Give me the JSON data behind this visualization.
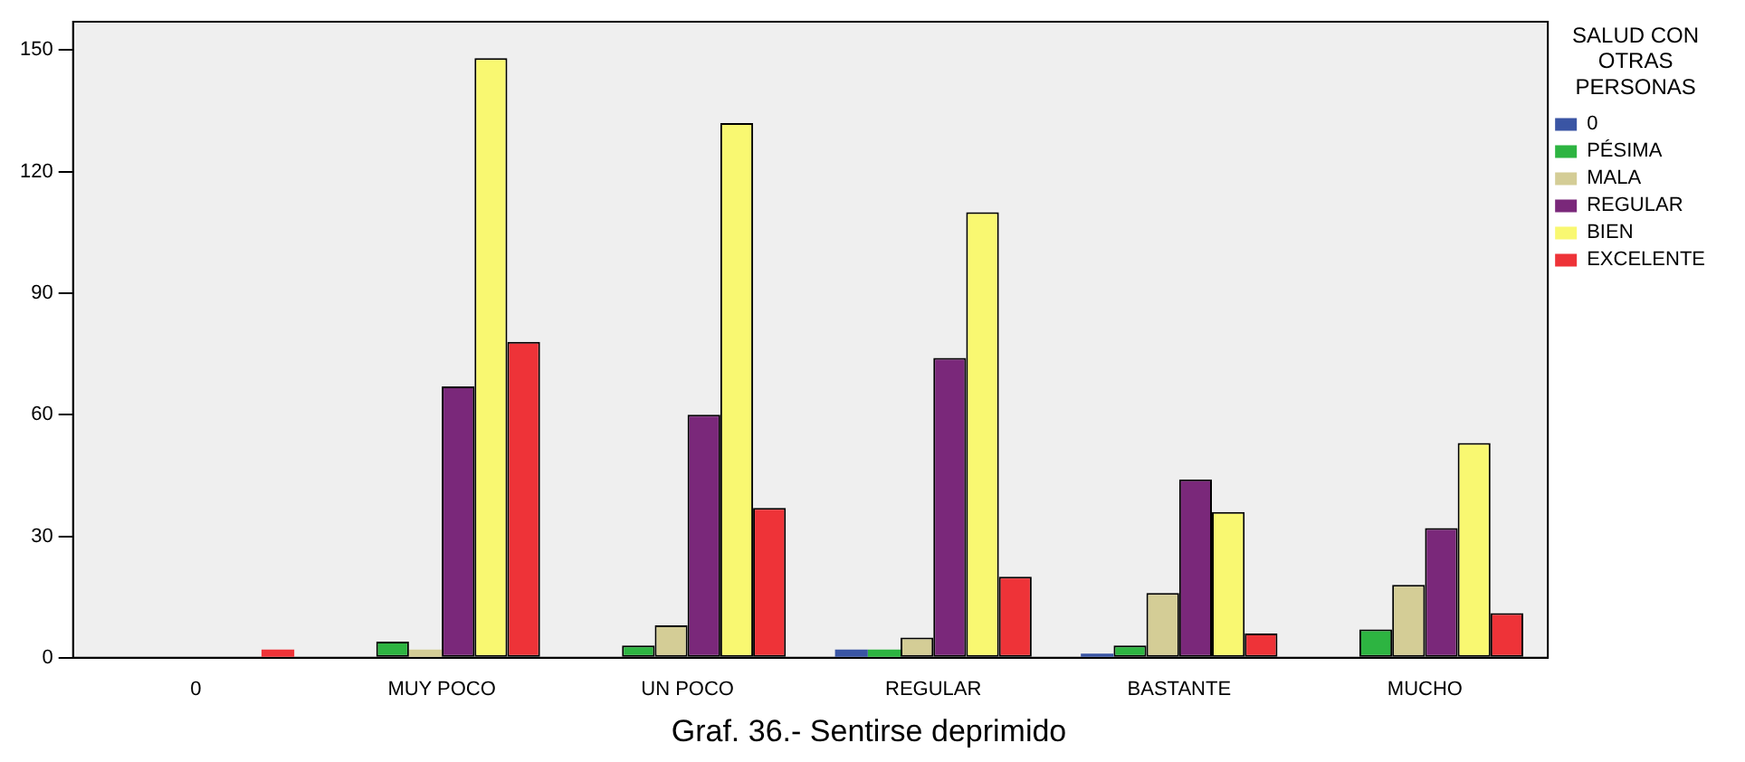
{
  "chart_data": {
    "type": "bar",
    "title": "Graf. 36.- Sentirse deprimido",
    "legend_title": "SALUD CON OTRAS PERSONAS",
    "categories": [
      "0",
      "MUY POCO",
      "UN POCO",
      "REGULAR",
      "BASTANTE",
      "MUCHO"
    ],
    "series": [
      {
        "name": "0",
        "color": "#3a55a4",
        "values": [
          0,
          0,
          0,
          2,
          1,
          0
        ]
      },
      {
        "name": "PÉSIMA",
        "color": "#2db441",
        "values": [
          0,
          4,
          3,
          2,
          3,
          7
        ]
      },
      {
        "name": "MALA",
        "color": "#d4cd96",
        "values": [
          0,
          2,
          8,
          5,
          16,
          18
        ]
      },
      {
        "name": "REGULAR",
        "color": "#7a287a",
        "values": [
          0,
          67,
          60,
          74,
          44,
          32
        ]
      },
      {
        "name": "BIEN",
        "color": "#f9f871",
        "values": [
          0,
          148,
          132,
          110,
          36,
          53
        ]
      },
      {
        "name": "EXCELENTE",
        "color": "#ee3338",
        "values": [
          2,
          78,
          37,
          20,
          6,
          11
        ]
      }
    ],
    "ylim": [
      0,
      157
    ],
    "yticks": [
      0,
      30,
      60,
      90,
      120,
      150
    ],
    "grid": false,
    "legend": "right"
  }
}
